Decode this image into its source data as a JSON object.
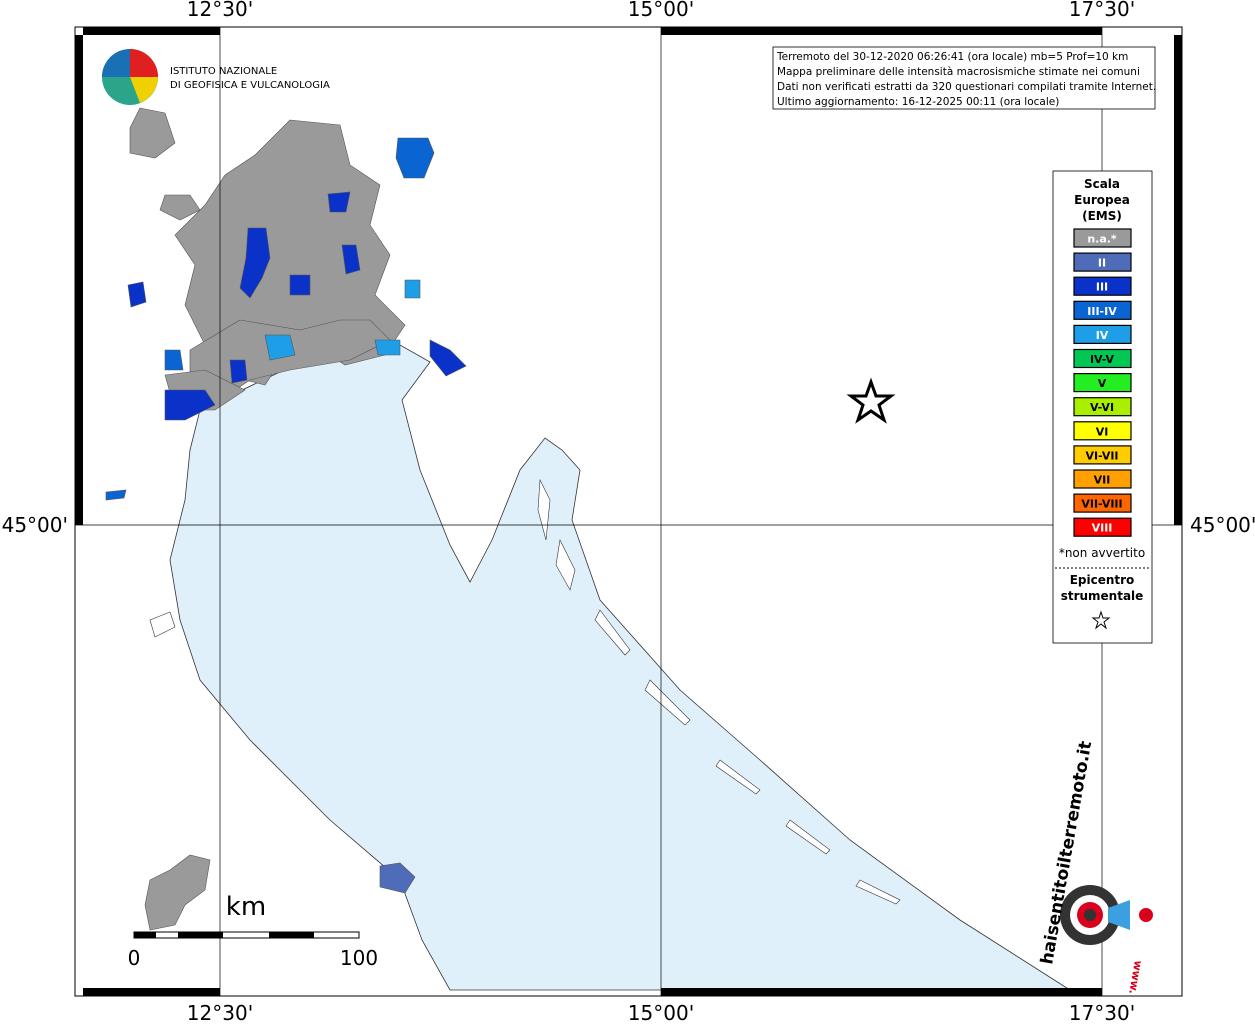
{
  "grid_labels": {
    "top": [
      "12°30'",
      "15°00'",
      "17°30'"
    ],
    "bottom": [
      "12°30'",
      "15°00'",
      "17°30'"
    ],
    "left": "45°00'",
    "right": "45°00'"
  },
  "info_box": [
    "Terremoto del 30-12-2020 06:26:41 (ora locale) mb=5 Prof=10 km",
    "Mappa preliminare delle intensità macrosismiche stimate nei comuni",
    "Dati non verificati estratti da 320 questionari compilati tramite Internet.",
    "Ultimo aggiornamento: 16-12-2025 00:11 (ora locale)"
  ],
  "legend": {
    "title": [
      "Scala",
      "Europea",
      "(EMS)"
    ],
    "items": [
      {
        "label": "n.a.*",
        "color": "#9a9a9a",
        "label_color": "#ffffff"
      },
      {
        "label": "II",
        "color": "#4f6cb8",
        "label_color": "#ffffff"
      },
      {
        "label": "III",
        "color": "#0a32c8",
        "label_color": "#ffffff"
      },
      {
        "label": "III-IV",
        "color": "#0a64d2",
        "label_color": "#ffffff"
      },
      {
        "label": "IV",
        "color": "#1e9ee6",
        "label_color": "#ffffff"
      },
      {
        "label": "IV-V",
        "color": "#00c853",
        "label_color": "#000000"
      },
      {
        "label": "V",
        "color": "#22ee22",
        "label_color": "#000000"
      },
      {
        "label": "V-VI",
        "color": "#aaee00",
        "label_color": "#000000"
      },
      {
        "label": "VI",
        "color": "#ffff00",
        "label_color": "#000000"
      },
      {
        "label": "VI-VII",
        "color": "#ffcc00",
        "label_color": "#000000"
      },
      {
        "label": "VII",
        "color": "#ffa000",
        "label_color": "#000000"
      },
      {
        "label": "VII-VIII",
        "color": "#ff6600",
        "label_color": "#000000"
      },
      {
        "label": "VIII",
        "color": "#ff0000",
        "label_color": "#ffffff"
      }
    ],
    "note": "*non avvertito",
    "epicenter_title": [
      "Epicentro",
      "strumentale"
    ]
  },
  "scale_bar": {
    "unit": "km",
    "labels": [
      "0",
      "100"
    ]
  },
  "ingv_logo": [
    "ISTITUTO NAZIONALE",
    "DI GEOFISICA E VULCANOLOGIA"
  ],
  "hsit_logo": [
    "haisentitoilterremoto.it",
    "www."
  ]
}
